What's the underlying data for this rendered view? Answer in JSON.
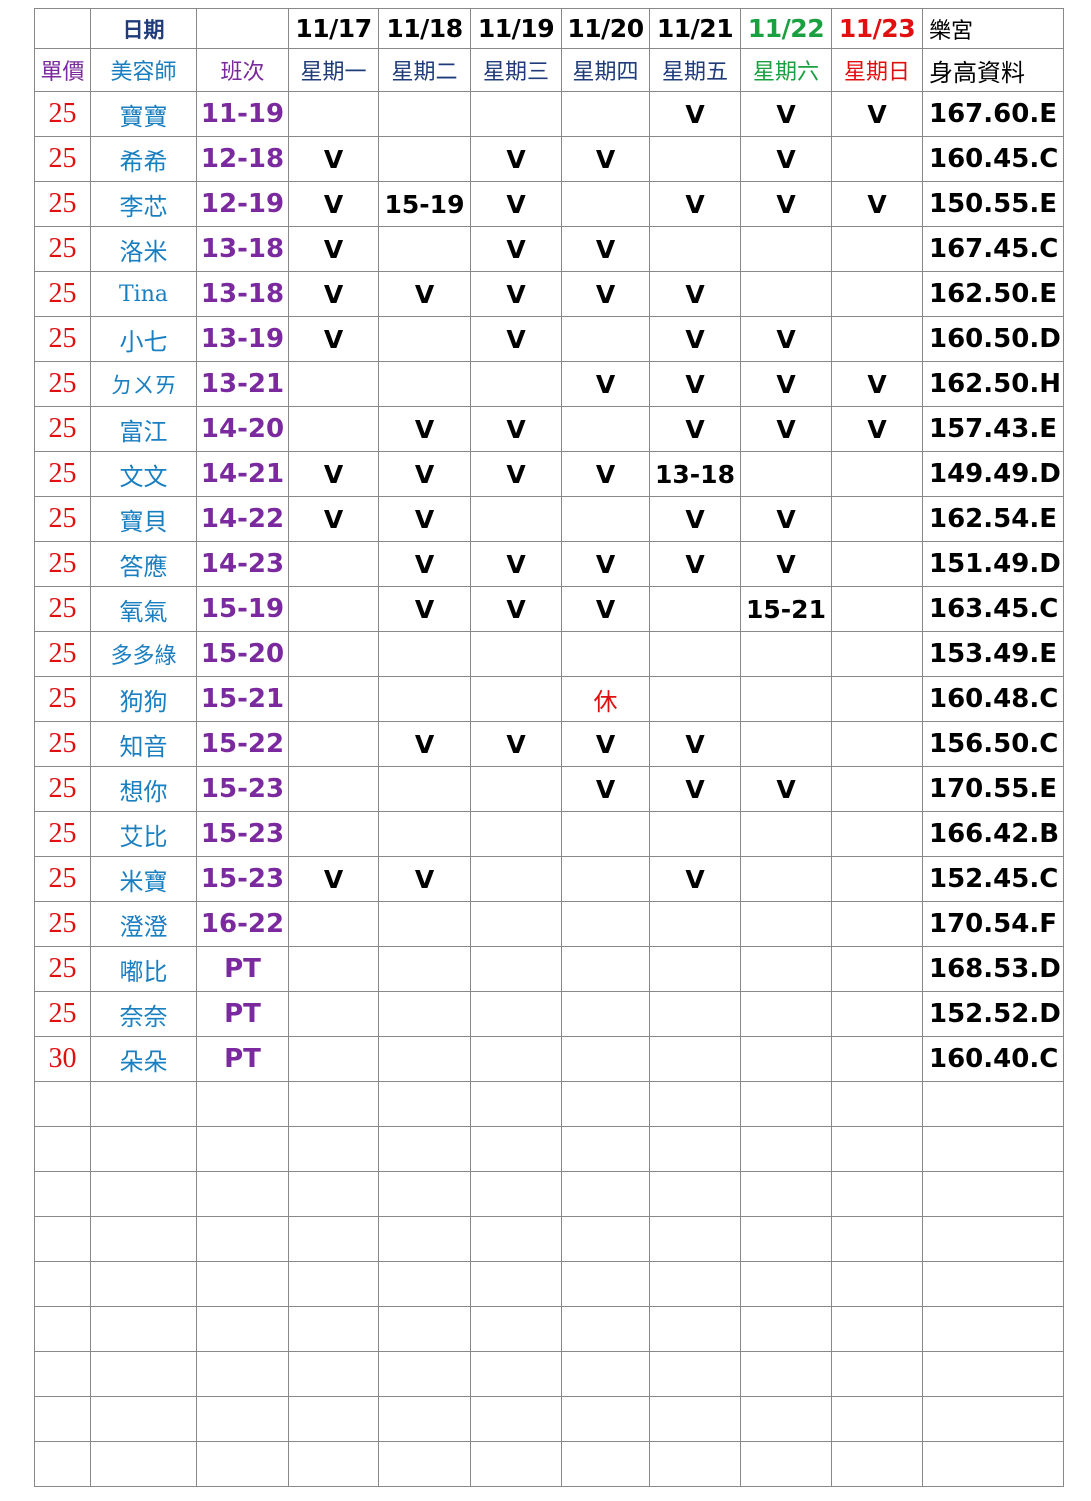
{
  "header": {
    "date_label": "日期",
    "dates": [
      "11/17",
      "11/18",
      "11/19",
      "11/20",
      "11/21",
      "11/22",
      "11/23"
    ],
    "location": "樂宮",
    "price_label": "單價",
    "stylist_label": "美容師",
    "shift_label": "班次",
    "weekdays": [
      "星期一",
      "星期二",
      "星期三",
      "星期四",
      "星期五",
      "星期六",
      "星期日"
    ],
    "height_label": "身高資料"
  },
  "colors": {
    "weekday": "#1f3b7a",
    "saturday": "#1aa040",
    "sunday": "#e01010",
    "price": "#e01010",
    "name": "#1a7fc0",
    "shift": "#7a2a9e",
    "price_label": "#7a2a9e"
  },
  "rows": [
    {
      "price": "25",
      "name": "寶寶",
      "shift": "11-19",
      "days": [
        "",
        "",
        "",
        "",
        "V",
        "V",
        "V"
      ],
      "height": "167.60.E"
    },
    {
      "price": "25",
      "name": "希希",
      "shift": "12-18",
      "days": [
        "V",
        "",
        "V",
        "V",
        "",
        "V",
        ""
      ],
      "height": "160.45.C"
    },
    {
      "price": "25",
      "name": "李芯",
      "shift": "12-19",
      "days": [
        "V",
        "15-19",
        "V",
        "",
        "V",
        "V",
        "V"
      ],
      "height": "150.55.E"
    },
    {
      "price": "25",
      "name": "洛米",
      "shift": "13-18",
      "days": [
        "V",
        "",
        "V",
        "V",
        "",
        "",
        ""
      ],
      "height": "167.45.C"
    },
    {
      "price": "25",
      "name": "Tina",
      "shift": "13-18",
      "days": [
        "V",
        "V",
        "V",
        "V",
        "V",
        "",
        ""
      ],
      "height": "162.50.E"
    },
    {
      "price": "25",
      "name": "小七",
      "shift": "13-19",
      "days": [
        "V",
        "",
        "V",
        "",
        "V",
        "V",
        ""
      ],
      "height": "160.50.D"
    },
    {
      "price": "25",
      "name": "ㄉㄨㄞ",
      "shift": "13-21",
      "days": [
        "",
        "",
        "",
        "V",
        "V",
        "V",
        "V"
      ],
      "height": "162.50.H"
    },
    {
      "price": "25",
      "name": "富江",
      "shift": "14-20",
      "days": [
        "",
        "V",
        "V",
        "",
        "V",
        "V",
        "V"
      ],
      "height": "157.43.E"
    },
    {
      "price": "25",
      "name": "文文",
      "shift": "14-21",
      "days": [
        "V",
        "V",
        "V",
        "V",
        "13-18",
        "",
        ""
      ],
      "height": "149.49.D"
    },
    {
      "price": "25",
      "name": "寶貝",
      "shift": "14-22",
      "days": [
        "V",
        "V",
        "",
        "",
        "V",
        "V",
        ""
      ],
      "height": "162.54.E"
    },
    {
      "price": "25",
      "name": "答應",
      "shift": "14-23",
      "days": [
        "",
        "V",
        "V",
        "V",
        "V",
        "V",
        ""
      ],
      "height": "151.49.D"
    },
    {
      "price": "25",
      "name": "氧氣",
      "shift": "15-19",
      "days": [
        "",
        "V",
        "V",
        "V",
        "",
        "15-21",
        ""
      ],
      "height": "163.45.C"
    },
    {
      "price": "25",
      "name": "多多綠",
      "shift": "15-20",
      "days": [
        "",
        "",
        "",
        "",
        "",
        "",
        ""
      ],
      "height": "153.49.E"
    },
    {
      "price": "25",
      "name": "狗狗",
      "shift": "15-21",
      "days": [
        "",
        "",
        "",
        "休",
        "",
        "",
        ""
      ],
      "height": "160.48.C"
    },
    {
      "price": "25",
      "name": "知音",
      "shift": "15-22",
      "days": [
        "",
        "V",
        "V",
        "V",
        "V",
        "",
        ""
      ],
      "height": "156.50.C"
    },
    {
      "price": "25",
      "name": "想你",
      "shift": "15-23",
      "days": [
        "",
        "",
        "",
        "V",
        "V",
        "V",
        ""
      ],
      "height": "170.55.E"
    },
    {
      "price": "25",
      "name": "艾比",
      "shift": "15-23",
      "days": [
        "",
        "",
        "",
        "",
        "",
        "",
        ""
      ],
      "height": "166.42.B"
    },
    {
      "price": "25",
      "name": "米寶",
      "shift": "15-23",
      "days": [
        "V",
        "V",
        "",
        "",
        "V",
        "",
        ""
      ],
      "height": "152.45.C"
    },
    {
      "price": "25",
      "name": "澄澄",
      "shift": "16-22",
      "days": [
        "",
        "",
        "",
        "",
        "",
        "",
        ""
      ],
      "height": "170.54.F"
    },
    {
      "price": "25",
      "name": "嘟比",
      "shift": "PT",
      "days": [
        "",
        "",
        "",
        "",
        "",
        "",
        ""
      ],
      "height": "168.53.D"
    },
    {
      "price": "25",
      "name": "奈奈",
      "shift": "PT",
      "days": [
        "",
        "",
        "",
        "",
        "",
        "",
        ""
      ],
      "height": "152.52.D"
    },
    {
      "price": "30",
      "name": "朵朵",
      "shift": "PT",
      "days": [
        "",
        "",
        "",
        "",
        "",
        "",
        ""
      ],
      "height": "160.40.C"
    }
  ]
}
